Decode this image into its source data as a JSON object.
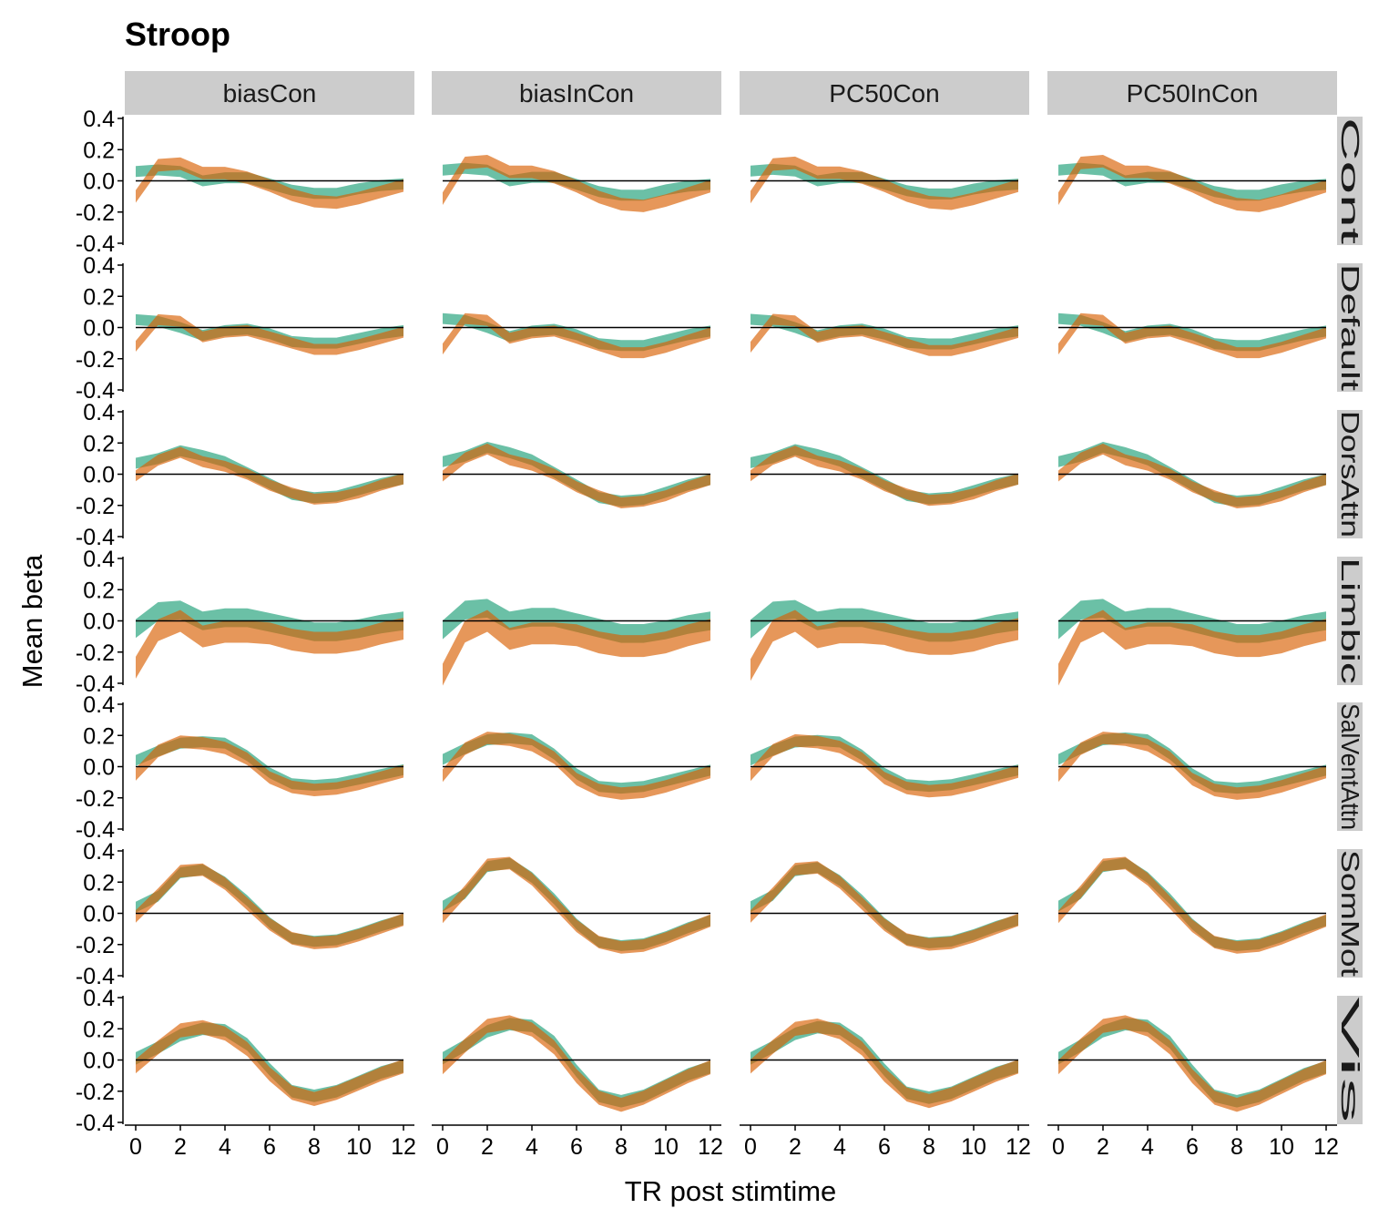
{
  "chart_data": {
    "type": "area",
    "title": "Stroop",
    "xlabel": "TR post stimtime",
    "ylabel": "Mean beta",
    "xlim": [
      0,
      12
    ],
    "ylim": [
      -0.4,
      0.4
    ],
    "x_ticks": [
      0,
      2,
      4,
      6,
      8,
      10,
      12
    ],
    "y_ticks": [
      0.4,
      0.2,
      0.0,
      -0.2,
      -0.4
    ],
    "y_tick_labels": [
      "0.4",
      "0.2",
      "0.0",
      "-0.2",
      "-0.4"
    ],
    "reference_line_y": 0,
    "colors": {
      "teal": "#1b9e77",
      "orange": "#d95f02",
      "strip_bg": "#cccccc"
    },
    "columns": [
      "biasCon",
      "biasInCon",
      "PC50Con",
      "PC50InCon"
    ],
    "rows": [
      "Cont",
      "Default",
      "DorsAttn",
      "Limbic",
      "SalVentAttn",
      "SomMot",
      "Vis"
    ],
    "x": [
      0,
      1,
      2,
      3,
      4,
      5,
      6,
      7,
      8,
      9,
      10,
      11,
      12
    ],
    "row_profiles": {
      "Cont": {
        "teal": [
          0.06,
          0.07,
          0.06,
          0.0,
          0.02,
          0.02,
          -0.02,
          -0.06,
          -0.08,
          -0.08,
          -0.05,
          -0.03,
          -0.02
        ],
        "orange": [
          -0.1,
          0.1,
          0.11,
          0.05,
          0.05,
          0.02,
          -0.03,
          -0.09,
          -0.13,
          -0.14,
          -0.11,
          -0.07,
          -0.03
        ],
        "teal_hw": 0.035,
        "orange_hw": 0.04
      },
      "Default": {
        "teal": [
          0.05,
          0.04,
          0.0,
          -0.05,
          -0.02,
          -0.01,
          -0.04,
          -0.09,
          -0.1,
          -0.1,
          -0.07,
          -0.04,
          -0.02
        ],
        "orange": [
          -0.12,
          0.05,
          0.04,
          -0.06,
          -0.03,
          -0.02,
          -0.06,
          -0.1,
          -0.14,
          -0.14,
          -0.11,
          -0.07,
          -0.03
        ],
        "teal_hw": 0.035,
        "orange_hw": 0.035
      },
      "DorsAttn": {
        "teal": [
          0.07,
          0.1,
          0.15,
          0.12,
          0.08,
          0.01,
          -0.06,
          -0.13,
          -0.15,
          -0.14,
          -0.1,
          -0.06,
          -0.03
        ],
        "orange": [
          -0.01,
          0.09,
          0.14,
          0.08,
          0.05,
          0.0,
          -0.07,
          -0.12,
          -0.16,
          -0.15,
          -0.12,
          -0.07,
          -0.03
        ],
        "teal_hw": 0.035,
        "orange_hw": 0.035
      },
      "Limbic": {
        "teal": [
          -0.05,
          0.06,
          0.07,
          0.0,
          0.02,
          0.02,
          -0.01,
          -0.04,
          -0.07,
          -0.07,
          -0.05,
          -0.02,
          0.0
        ],
        "orange": [
          -0.3,
          -0.06,
          0.0,
          -0.1,
          -0.07,
          -0.07,
          -0.08,
          -0.12,
          -0.14,
          -0.14,
          -0.12,
          -0.08,
          -0.05
        ],
        "teal_hw": 0.06,
        "orange_hw": 0.07
      },
      "SalVentAttn": {
        "teal": [
          0.04,
          0.1,
          0.15,
          0.16,
          0.15,
          0.07,
          -0.04,
          -0.11,
          -0.12,
          -0.11,
          -0.08,
          -0.05,
          -0.02
        ],
        "orange": [
          -0.05,
          0.1,
          0.16,
          0.15,
          0.12,
          0.05,
          -0.07,
          -0.13,
          -0.15,
          -0.14,
          -0.11,
          -0.07,
          -0.03
        ],
        "teal_hw": 0.035,
        "orange_hw": 0.04
      },
      "SomMot": {
        "teal": [
          0.04,
          0.11,
          0.26,
          0.28,
          0.2,
          0.08,
          -0.06,
          -0.16,
          -0.18,
          -0.17,
          -0.13,
          -0.08,
          -0.04
        ],
        "orange": [
          -0.02,
          0.12,
          0.27,
          0.28,
          0.19,
          0.06,
          -0.07,
          -0.16,
          -0.19,
          -0.18,
          -0.14,
          -0.09,
          -0.04
        ],
        "teal_hw": 0.035,
        "orange_hw": 0.04
      },
      "Vis": {
        "teal": [
          0.01,
          0.08,
          0.16,
          0.2,
          0.19,
          0.1,
          -0.06,
          -0.2,
          -0.23,
          -0.2,
          -0.14,
          -0.08,
          -0.04
        ],
        "orange": [
          -0.04,
          0.08,
          0.19,
          0.21,
          0.17,
          0.07,
          -0.09,
          -0.21,
          -0.25,
          -0.21,
          -0.15,
          -0.09,
          -0.04
        ],
        "teal_hw": 0.04,
        "orange_hw": 0.045
      }
    },
    "column_adjust": {
      "biasCon": {
        "scale": 1.0,
        "shift": 0.0
      },
      "biasInCon": {
        "scale": 1.15,
        "shift": 0.0
      },
      "PC50Con": {
        "scale": 1.05,
        "shift": 0.0
      },
      "PC50InCon": {
        "scale": 1.15,
        "shift": 0.0
      }
    },
    "grid": false,
    "legend": "none"
  }
}
